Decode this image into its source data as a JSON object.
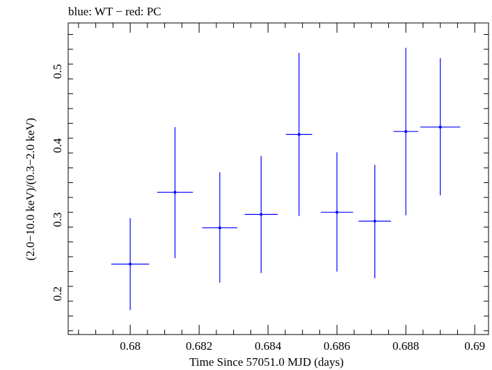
{
  "chart_data": {
    "type": "scatter",
    "title": "blue: WT − red: PC",
    "xlabel": "Time Since 57051.0 MJD (days)",
    "ylabel": "(2.0−10.0 keV)/(0.3−2.0 keV)",
    "xlim": [
      0.6782,
      0.6904
    ],
    "ylim": [
      0.145,
      0.5655
    ],
    "x_ticks": [
      {
        "value": 0.68,
        "label": "0.68"
      },
      {
        "value": 0.682,
        "label": "0.682"
      },
      {
        "value": 0.684,
        "label": "0.684"
      },
      {
        "value": 0.686,
        "label": "0.686"
      },
      {
        "value": 0.688,
        "label": "0.688"
      },
      {
        "value": 0.69,
        "label": "0.69"
      }
    ],
    "y_ticks": [
      {
        "value": 0.2,
        "label": "0.2"
      },
      {
        "value": 0.3,
        "label": "0.3"
      },
      {
        "value": 0.4,
        "label": "0.4"
      },
      {
        "value": 0.5,
        "label": "0.5"
      }
    ],
    "series": [
      {
        "name": "WT",
        "color": "#0000ff",
        "points": [
          {
            "x": 0.68,
            "xerr": 0.00055,
            "y": 0.24,
            "ylo": 0.178,
            "yhi": 0.302
          },
          {
            "x": 0.6813,
            "xerr": 0.00052,
            "y": 0.337,
            "ylo": 0.248,
            "yhi": 0.425
          },
          {
            "x": 0.6826,
            "xerr": 0.00051,
            "y": 0.289,
            "ylo": 0.215,
            "yhi": 0.364
          },
          {
            "x": 0.6838,
            "xerr": 0.00048,
            "y": 0.307,
            "ylo": 0.228,
            "yhi": 0.386
          },
          {
            "x": 0.6849,
            "xerr": 0.00038,
            "y": 0.415,
            "ylo": 0.305,
            "yhi": 0.525
          },
          {
            "x": 0.686,
            "xerr": 0.00047,
            "y": 0.31,
            "ylo": 0.23,
            "yhi": 0.391
          },
          {
            "x": 0.6871,
            "xerr": 0.00047,
            "y": 0.298,
            "ylo": 0.221,
            "yhi": 0.374
          },
          {
            "x": 0.688,
            "xerr": 0.00036,
            "y": 0.419,
            "ylo": 0.306,
            "yhi": 0.532
          },
          {
            "x": 0.689,
            "xerr": 0.00058,
            "y": 0.425,
            "ylo": 0.333,
            "yhi": 0.518
          }
        ]
      }
    ]
  }
}
